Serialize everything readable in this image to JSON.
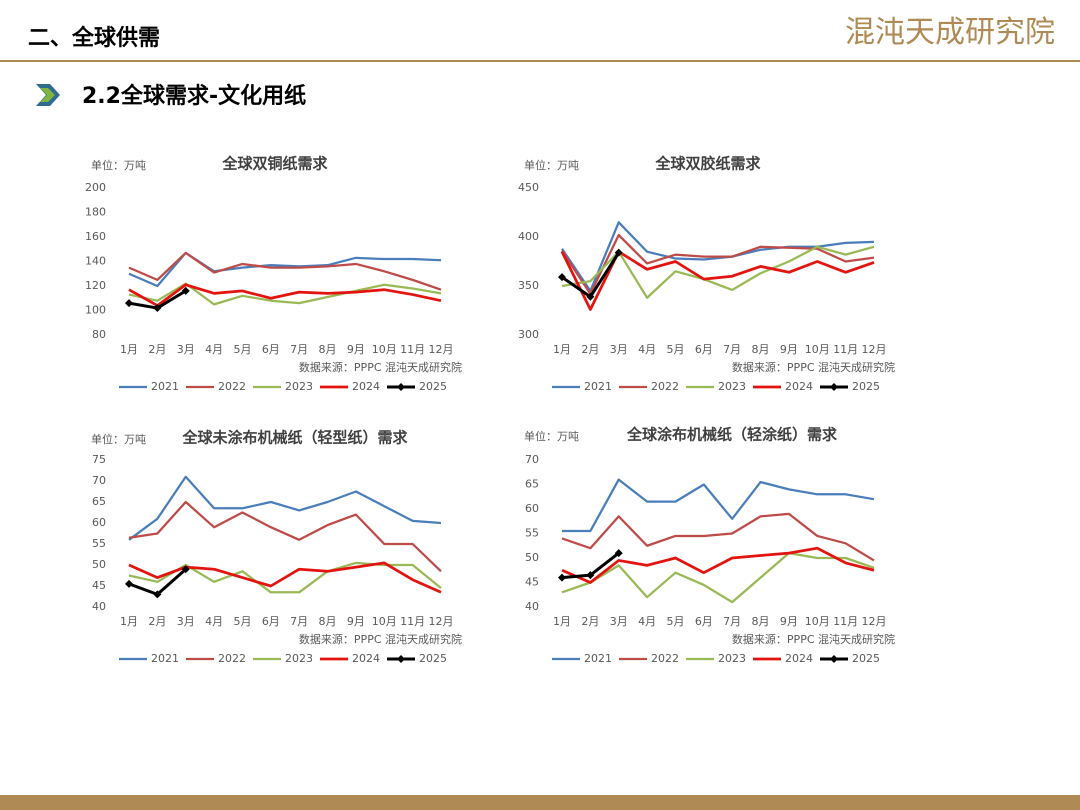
{
  "header": {
    "section": "二、全球供需",
    "logo": "混沌天成研究院",
    "subtitle": "2.2全球需求-文化用纸"
  },
  "chart_data": [
    {
      "type": "line",
      "title": "全球双铜纸需求",
      "unit": "单位：万吨",
      "source": "数据来源：PPPC  混沌天成研究院",
      "categories": [
        "1月",
        "2月",
        "3月",
        "4月",
        "5月",
        "6月",
        "7月",
        "8月",
        "9月",
        "10月",
        "11月",
        "12月"
      ],
      "ylim": [
        80,
        200
      ],
      "yticks": [
        80,
        100,
        120,
        140,
        160,
        180,
        200
      ],
      "series": [
        {
          "name": "2021",
          "color": "#4a7ebb",
          "values": [
            130,
            120,
            147,
            132,
            135,
            137,
            136,
            137,
            143,
            142,
            142,
            141
          ]
        },
        {
          "name": "2022",
          "color": "#be4b48",
          "values": [
            135,
            125,
            147,
            131,
            138,
            135,
            135,
            136,
            138,
            132,
            125,
            117
          ]
        },
        {
          "name": "2023",
          "color": "#98b954",
          "values": [
            113,
            108,
            122,
            105,
            112,
            108,
            106,
            111,
            116,
            121,
            118,
            114
          ]
        },
        {
          "name": "2024",
          "color": "#e3140f",
          "values": [
            117,
            104,
            121,
            114,
            116,
            110,
            115,
            114,
            115,
            117,
            113,
            108
          ]
        },
        {
          "name": "2025",
          "color": "#000000",
          "values": [
            106,
            102,
            116,
            null,
            null,
            null,
            null,
            null,
            null,
            null,
            null,
            null
          ]
        }
      ]
    },
    {
      "type": "line",
      "title": "全球双胶纸需求",
      "unit": "单位：万吨",
      "source": "数据来源：PPPC  混沌天成研究院",
      "categories": [
        "1月",
        "2月",
        "3月",
        "4月",
        "5月",
        "6月",
        "7月",
        "8月",
        "9月",
        "10月",
        "11月",
        "12月"
      ],
      "ylim": [
        300,
        450
      ],
      "yticks": [
        300,
        350,
        400,
        450
      ],
      "series": [
        {
          "name": "2021",
          "color": "#4a7ebb",
          "values": [
            388,
            345,
            415,
            385,
            378,
            377,
            380,
            387,
            390,
            390,
            394,
            395
          ]
        },
        {
          "name": "2022",
          "color": "#be4b48",
          "values": [
            386,
            342,
            402,
            373,
            382,
            380,
            380,
            390,
            389,
            388,
            375,
            379
          ]
        },
        {
          "name": "2023",
          "color": "#98b954",
          "values": [
            350,
            355,
            385,
            338,
            365,
            357,
            346,
            363,
            375,
            390,
            382,
            390
          ]
        },
        {
          "name": "2024",
          "color": "#e3140f",
          "values": [
            385,
            326,
            385,
            367,
            375,
            357,
            360,
            370,
            364,
            375,
            364,
            374
          ]
        },
        {
          "name": "2025",
          "color": "#000000",
          "values": [
            359,
            339,
            384,
            null,
            null,
            null,
            null,
            null,
            null,
            null,
            null,
            null
          ]
        }
      ]
    },
    {
      "type": "line",
      "title": "全球未涂布机械纸（轻型纸）需求",
      "unit": "单位：万吨",
      "source": "数据来源：PPPC  混沌天成研究院",
      "categories": [
        "1月",
        "2月",
        "3月",
        "4月",
        "5月",
        "6月",
        "7月",
        "8月",
        "9月",
        "10月",
        "11月",
        "12月"
      ],
      "ylim": [
        40,
        75
      ],
      "yticks": [
        40,
        45,
        50,
        55,
        60,
        65,
        70,
        75
      ],
      "series": [
        {
          "name": "2021",
          "color": "#4a7ebb",
          "values": [
            56,
            61,
            71,
            63.5,
            63.5,
            65,
            63,
            65,
            67.5,
            64,
            60.5,
            60
          ]
        },
        {
          "name": "2022",
          "color": "#be4b48",
          "values": [
            56.5,
            57.5,
            65,
            59,
            62.5,
            59,
            56,
            59.5,
            62,
            55,
            55,
            48.5
          ]
        },
        {
          "name": "2023",
          "color": "#98b954",
          "values": [
            47.5,
            46,
            50,
            46,
            48.5,
            43.5,
            43.5,
            48.5,
            50.5,
            50,
            50,
            44.5
          ]
        },
        {
          "name": "2024",
          "color": "#e3140f",
          "values": [
            50,
            47,
            49.5,
            49,
            47,
            45,
            49,
            48.5,
            49.5,
            50.5,
            46.5,
            43.5
          ]
        },
        {
          "name": "2025",
          "color": "#000000",
          "values": [
            45.5,
            43,
            49,
            null,
            null,
            null,
            null,
            null,
            null,
            null,
            null,
            null
          ]
        }
      ]
    },
    {
      "type": "line",
      "title": "全球涂布机械纸（轻涂纸）需求",
      "unit": "单位：万吨",
      "source": "数据来源：PPPC  混沌天成研究院",
      "categories": [
        "1月",
        "2月",
        "3月",
        "4月",
        "5月",
        "6月",
        "7月",
        "8月",
        "9月",
        "10月",
        "11月",
        "12月"
      ],
      "ylim": [
        40,
        70
      ],
      "yticks": [
        40,
        45,
        50,
        55,
        60,
        65,
        70
      ],
      "series": [
        {
          "name": "2021",
          "color": "#4a7ebb",
          "values": [
            55.5,
            55.5,
            66,
            61.5,
            61.5,
            65,
            58,
            65.5,
            64,
            63,
            63,
            62
          ]
        },
        {
          "name": "2022",
          "color": "#be4b48",
          "values": [
            54,
            52,
            58.5,
            52.5,
            54.5,
            54.5,
            55,
            58.5,
            59,
            54.5,
            53,
            49.5
          ]
        },
        {
          "name": "2023",
          "color": "#98b954",
          "values": [
            43,
            45,
            48.5,
            42,
            47,
            44.5,
            41,
            46,
            51,
            50,
            50,
            48
          ]
        },
        {
          "name": "2024",
          "color": "#e3140f",
          "values": [
            47.5,
            45,
            49.5,
            48.5,
            50,
            47,
            50,
            50.5,
            51,
            52,
            49,
            47.5
          ]
        },
        {
          "name": "2025",
          "color": "#000000",
          "values": [
            46,
            46.5,
            51,
            null,
            null,
            null,
            null,
            null,
            null,
            null,
            null,
            null
          ]
        }
      ]
    }
  ]
}
